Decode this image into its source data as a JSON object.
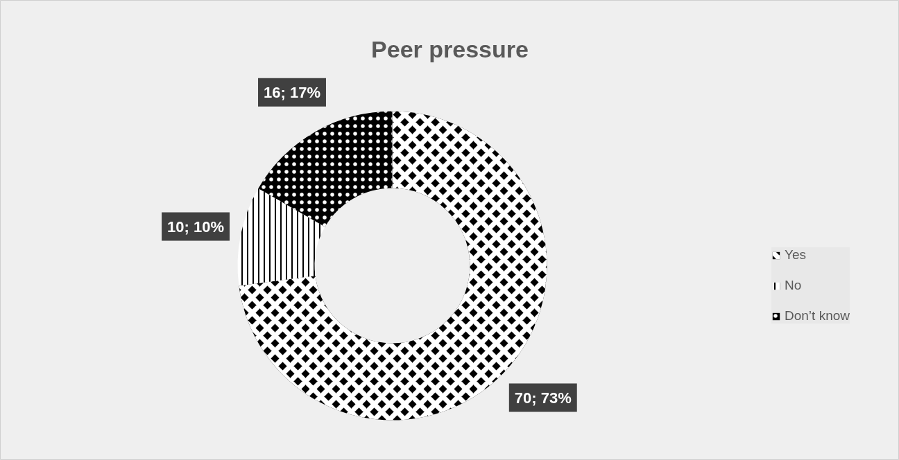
{
  "chart_data": {
    "type": "donut",
    "title": "Peer pressure",
    "categories": [
      "Yes",
      "No",
      "Don’t know"
    ],
    "values": [
      70,
      10,
      16
    ],
    "colors": [
      "#000000",
      "#ffffff",
      "#000000"
    ],
    "value_labels": [
      "70; 73%",
      "10; 10%",
      "16; 17%"
    ],
    "legend": "right"
  }
}
